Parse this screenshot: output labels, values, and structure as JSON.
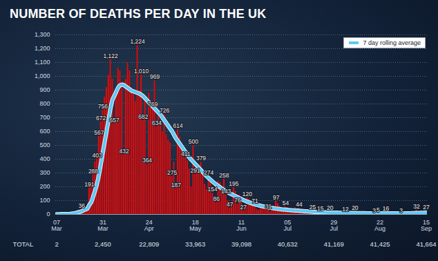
{
  "chart_data": {
    "type": "bar",
    "title": "NUMBER OF DEATHS PER DAY IN THE UK",
    "categories": [
      "07 Mar",
      null,
      null,
      null,
      null,
      null,
      null,
      null,
      null,
      null,
      null,
      null,
      null,
      null,
      null,
      null,
      null,
      null,
      null,
      null,
      null,
      null,
      null,
      null,
      "31 Mar",
      null,
      null,
      null,
      null,
      null,
      null,
      null,
      null,
      null,
      null,
      null,
      null,
      null,
      null,
      null,
      null,
      null,
      null,
      null,
      null,
      null,
      null,
      null,
      "24 Apr",
      null,
      null,
      null,
      null,
      null,
      null,
      null,
      null,
      null,
      null,
      null,
      null,
      null,
      null,
      null,
      null,
      null,
      null,
      null,
      null,
      null,
      null,
      null,
      "18 May",
      null,
      null,
      null,
      null,
      null,
      null,
      null,
      null,
      null,
      null,
      null,
      null,
      null,
      null,
      null,
      null,
      null,
      null,
      null,
      null,
      null,
      null,
      null,
      "11 Jun",
      null,
      null,
      null,
      null,
      null,
      null,
      null,
      null,
      null,
      null,
      null,
      null,
      null,
      null,
      null,
      null,
      null,
      null,
      null,
      null,
      null,
      null,
      null,
      "05 Jul",
      null,
      null,
      null,
      null,
      null,
      null,
      null,
      null,
      null,
      null,
      null,
      null,
      null,
      null,
      null,
      null,
      null,
      null,
      null,
      null,
      null,
      null,
      null,
      "29 Jul",
      null,
      null,
      null,
      null,
      null,
      null,
      null,
      null,
      null,
      null,
      null,
      null,
      null,
      null,
      null,
      null,
      null,
      null,
      null,
      null,
      null,
      null,
      null,
      "22 Aug",
      null,
      null,
      null,
      null,
      null,
      null,
      null,
      null,
      null,
      null,
      null,
      null,
      null,
      null,
      null,
      null,
      null,
      null,
      null,
      null,
      null,
      null,
      null,
      "15 Sep"
    ],
    "series": [
      {
        "type": "bar",
        "color": "#c4161c",
        "values": [
          2,
          1,
          2,
          3,
          4,
          2,
          5,
          8,
          10,
          14,
          20,
          16,
          33,
          36,
          56,
          48,
          54,
          191,
          220,
          288,
          381,
          403,
          567,
          672,
          756,
          850,
          920,
          1010,
          1122,
          980,
          657,
          880,
          1060,
          1040,
          960,
          432,
          980,
          1100,
          1040,
          910,
          880,
          820,
          1224,
          900,
          1010,
          682,
          860,
          364,
          880,
          820,
          769,
          969,
          634,
          720,
          650,
          600,
          726,
          580,
          540,
          520,
          275,
          380,
          187,
          614,
          560,
          480,
          430,
          411,
          390,
          330,
          200,
          500,
          291,
          340,
          360,
          379,
          310,
          220,
          180,
          274,
          260,
          154,
          120,
          86,
          240,
          230,
          200,
          258,
          143,
          100,
          47,
          80,
          195,
          170,
          76,
          140,
          130,
          27,
          50,
          120,
          110,
          100,
          90,
          71,
          40,
          30,
          80,
          70,
          65,
          60,
          31,
          20,
          50,
          60,
          97,
          80,
          60,
          40,
          20,
          54,
          50,
          40,
          22,
          15,
          50,
          35,
          44,
          30,
          25,
          10,
          8,
          30,
          20,
          25,
          18,
          15,
          10,
          15,
          12,
          8,
          6,
          16,
          20,
          14,
          10,
          8,
          6,
          18,
          15,
          10,
          12,
          8,
          5,
          4,
          16,
          20,
          12,
          10,
          8,
          3,
          2,
          12,
          10,
          8,
          6,
          3,
          4,
          5,
          10,
          6,
          4,
          16,
          12,
          2,
          1,
          10,
          8,
          6,
          5,
          3,
          1,
          12,
          10,
          8,
          6,
          4,
          2,
          32,
          14,
          10,
          8,
          6,
          27
        ],
        "value_labels": [
          null,
          null,
          null,
          null,
          null,
          null,
          null,
          null,
          null,
          null,
          null,
          null,
          null,
          "36",
          null,
          null,
          null,
          "191",
          null,
          "288",
          null,
          "403",
          "567",
          "672",
          "756",
          null,
          null,
          null,
          "1,122",
          null,
          "657",
          null,
          null,
          null,
          null,
          "432",
          null,
          null,
          null,
          null,
          null,
          null,
          "1,224",
          null,
          "1,010",
          "682",
          null,
          "364",
          null,
          null,
          "769",
          "969",
          "634",
          null,
          null,
          null,
          "726",
          null,
          null,
          null,
          "275",
          null,
          "187",
          "614",
          null,
          null,
          null,
          "411",
          null,
          null,
          null,
          "500",
          "291",
          null,
          null,
          "379",
          null,
          null,
          null,
          "274",
          null,
          "154",
          null,
          "86",
          null,
          null,
          null,
          "258",
          "143",
          null,
          "47",
          null,
          "195",
          null,
          "76",
          null,
          null,
          "27",
          null,
          "120",
          null,
          null,
          null,
          "71",
          null,
          null,
          null,
          null,
          null,
          null,
          "31",
          null,
          null,
          null,
          "97",
          null,
          null,
          null,
          null,
          "54",
          null,
          null,
          null,
          null,
          null,
          null,
          "44",
          null,
          null,
          null,
          null,
          null,
          null,
          "25",
          null,
          null,
          null,
          "15",
          null,
          null,
          null,
          null,
          "20",
          null,
          null,
          null,
          null,
          null,
          null,
          null,
          "12",
          null,
          null,
          null,
          null,
          "20",
          null,
          null,
          null,
          null,
          null,
          null,
          null,
          null,
          null,
          "3",
          null,
          "5",
          null,
          null,
          null,
          "16",
          null,
          null,
          null,
          null,
          null,
          null,
          null,
          "3",
          null,
          null,
          null,
          null,
          null,
          null,
          null,
          "32",
          null,
          null,
          null,
          null,
          "27"
        ]
      },
      {
        "type": "line",
        "name": "7 day rolling average",
        "color": "#5ec8f4",
        "values": [
          1,
          1,
          2,
          2,
          2,
          3,
          3,
          4,
          6,
          8,
          11,
          15,
          18,
          23,
          30,
          36,
          44,
          70,
          90,
          130,
          175,
          225,
          290,
          370,
          450,
          530,
          610,
          690,
          770,
          830,
          860,
          890,
          920,
          935,
          940,
          935,
          925,
          915,
          905,
          895,
          890,
          885,
          880,
          875,
          865,
          855,
          840,
          825,
          810,
          795,
          780,
          765,
          750,
          735,
          720,
          700,
          680,
          660,
          640,
          620,
          600,
          575,
          550,
          530,
          510,
          490,
          470,
          450,
          430,
          410,
          395,
          380,
          365,
          350,
          335,
          320,
          305,
          290,
          275,
          262,
          250,
          238,
          226,
          215,
          205,
          195,
          185,
          176,
          168,
          160,
          152,
          145,
          138,
          131,
          124,
          117,
          110,
          104,
          98,
          92,
          87,
          82,
          77,
          73,
          69,
          65,
          62,
          59,
          56,
          53,
          50,
          48,
          46,
          44,
          42,
          40,
          38,
          36,
          35,
          34,
          33,
          31,
          30,
          29,
          28,
          27,
          26,
          25,
          24,
          23,
          22,
          21,
          20,
          19,
          18,
          17,
          17,
          16,
          15,
          15,
          14,
          14,
          13,
          13,
          12,
          12,
          12,
          11,
          11,
          11,
          10,
          10,
          10,
          10,
          10,
          10,
          9,
          9,
          9,
          9,
          9,
          8,
          8,
          8,
          8,
          8,
          7,
          7,
          7,
          7,
          7,
          7,
          7,
          7,
          7,
          7,
          7,
          7,
          7,
          7,
          7,
          7,
          8,
          8,
          8,
          9,
          9,
          10,
          10,
          11,
          11,
          12,
          13
        ]
      }
    ],
    "ylim": [
      0,
      1300
    ],
    "yticks": [
      0,
      100,
      200,
      300,
      400,
      500,
      600,
      700,
      800,
      900,
      {
        "value": 1000,
        "label": "1,000"
      },
      {
        "value": 1100,
        "label": "1,100"
      },
      {
        "value": 1200,
        "label": "1,200"
      },
      {
        "value": 1300,
        "label": "1,300"
      }
    ],
    "grid": true,
    "legend": "top-right",
    "data_labels": true,
    "totals_label": "TOTAL",
    "totals": [
      2,
      2450,
      22809,
      33963,
      39098,
      40632,
      41169,
      41425,
      41664
    ]
  }
}
